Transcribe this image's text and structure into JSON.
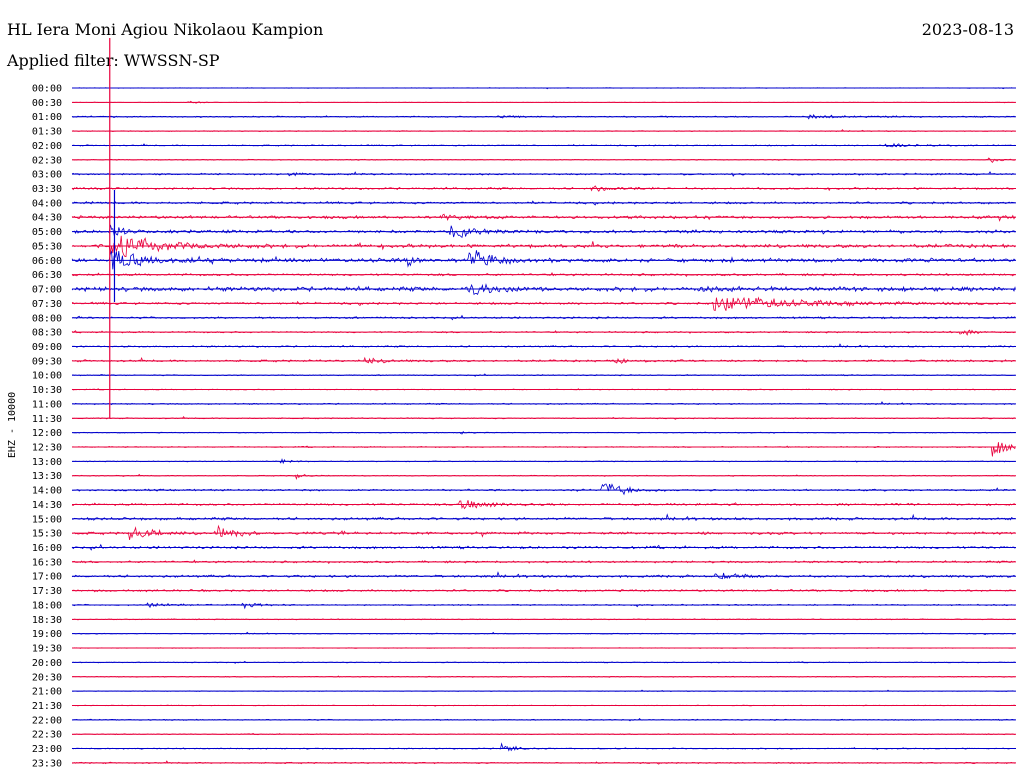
{
  "header": {
    "station": "HL Iera Moni Agiou Nikolaou Kampion",
    "date": "2023-08-13",
    "filter": "Applied filter: WWSSN-SP"
  },
  "chart_data": {
    "type": "line",
    "title": "HL Iera Moni Agiou Nikolaou Kampion",
    "ylabel": "EHZ - 10000",
    "row_minutes": 30,
    "trace_colors": [
      "#0000cc",
      "#e8003c"
    ],
    "grid_color_blue": "#0000cc",
    "grid_color_red": "#e8003c",
    "rows": [
      "00:00",
      "00:30",
      "01:00",
      "01:30",
      "02:00",
      "02:30",
      "03:00",
      "03:30",
      "04:00",
      "04:30",
      "05:00",
      "05:30",
      "06:00",
      "06:30",
      "07:00",
      "07:30",
      "08:00",
      "08:30",
      "09:00",
      "09:30",
      "10:00",
      "10:30",
      "11:00",
      "11:30",
      "12:00",
      "12:30",
      "13:00",
      "13:30",
      "14:00",
      "14:30",
      "15:00",
      "15:30",
      "16:00",
      "16:30",
      "17:00",
      "17:30",
      "18:00",
      "18:30",
      "19:00",
      "19:30",
      "20:00",
      "20:30",
      "21:00",
      "21:30",
      "22:00",
      "22:30",
      "23:00",
      "23:30"
    ],
    "noise": [
      0.3,
      0.2,
      0.6,
      0.4,
      0.5,
      0.4,
      0.8,
      0.9,
      1.0,
      1.3,
      1.4,
      1.6,
      1.8,
      1.0,
      2.0,
      1.0,
      0.9,
      0.7,
      0.7,
      0.9,
      0.5,
      0.4,
      0.6,
      0.5,
      0.4,
      0.5,
      0.4,
      0.4,
      0.8,
      0.9,
      1.2,
      1.1,
      1.1,
      0.9,
      1.1,
      0.9,
      0.6,
      0.4,
      0.4,
      0.3,
      0.4,
      0.4,
      0.3,
      0.3,
      0.5,
      0.4,
      0.5,
      0.6
    ],
    "events": [
      {
        "row": 1,
        "t": 0.12,
        "amp": 2,
        "dur": 0.01
      },
      {
        "row": 2,
        "t": 0.45,
        "amp": 2,
        "dur": 0.02
      },
      {
        "row": 2,
        "t": 0.78,
        "amp": 2,
        "dur": 0.04
      },
      {
        "row": 4,
        "t": 0.86,
        "amp": 3,
        "dur": 0.02
      },
      {
        "row": 5,
        "t": 0.97,
        "amp": 4,
        "dur": 0.01
      },
      {
        "row": 6,
        "t": 0.23,
        "amp": 3,
        "dur": 0.01
      },
      {
        "row": 7,
        "t": 0.55,
        "amp": 3,
        "dur": 0.02
      },
      {
        "row": 9,
        "t": 0.39,
        "amp": 3,
        "dur": 0.03
      },
      {
        "row": 9,
        "t": 0.98,
        "amp": 4,
        "dur": 0.01
      },
      {
        "row": 10,
        "t": 0.04,
        "amp": 12,
        "dur": 0.01
      },
      {
        "row": 10,
        "t": 0.4,
        "amp": 10,
        "dur": 0.02
      },
      {
        "row": 11,
        "t": 0.04,
        "amp": 14,
        "dur": 0.05
      },
      {
        "row": 12,
        "t": 0.04,
        "amp": 11,
        "dur": 0.03
      },
      {
        "row": 12,
        "t": 0.355,
        "amp": 7,
        "dur": 0.005
      },
      {
        "row": 12,
        "t": 0.42,
        "amp": 14,
        "dur": 0.02
      },
      {
        "row": 14,
        "t": 0.42,
        "amp": 8,
        "dur": 0.02
      },
      {
        "row": 14,
        "t": 0.66,
        "amp": 3,
        "dur": 0.02
      },
      {
        "row": 15,
        "t": 0.68,
        "amp": 9,
        "dur": 0.08
      },
      {
        "row": 17,
        "t": 0.94,
        "amp": 4,
        "dur": 0.01
      },
      {
        "row": 19,
        "t": 0.31,
        "amp": 3,
        "dur": 0.02
      },
      {
        "row": 19,
        "t": 0.57,
        "amp": 3,
        "dur": 0.02
      },
      {
        "row": 24,
        "t": 0.41,
        "amp": 2,
        "dur": 0.01
      },
      {
        "row": 25,
        "t": 0.975,
        "amp": 12,
        "dur": 0.02
      },
      {
        "row": 26,
        "t": 0.22,
        "amp": 3,
        "dur": 0.01
      },
      {
        "row": 27,
        "t": 0.235,
        "amp": 4,
        "dur": 0.01
      },
      {
        "row": 28,
        "t": 0.56,
        "amp": 12,
        "dur": 0.02
      },
      {
        "row": 29,
        "t": 0.41,
        "amp": 5,
        "dur": 0.03
      },
      {
        "row": 31,
        "t": 0.06,
        "amp": 10,
        "dur": 0.02
      },
      {
        "row": 31,
        "t": 0.15,
        "amp": 8,
        "dur": 0.02
      },
      {
        "row": 34,
        "t": 0.68,
        "amp": 4,
        "dur": 0.02
      },
      {
        "row": 36,
        "t": 0.08,
        "amp": 3,
        "dur": 0.02
      },
      {
        "row": 36,
        "t": 0.18,
        "amp": 3,
        "dur": 0.02
      },
      {
        "row": 46,
        "t": 0.455,
        "amp": 8,
        "dur": 0.01
      }
    ],
    "gaps": [
      {
        "row": 0,
        "from": 0.0,
        "to": 1.0
      }
    ],
    "spikes": [
      {
        "row": 11,
        "t": 0.04,
        "top": 38,
        "bottom": 418
      },
      {
        "row": 10,
        "t": 0.045,
        "top": 190,
        "bottom": 302
      }
    ]
  }
}
